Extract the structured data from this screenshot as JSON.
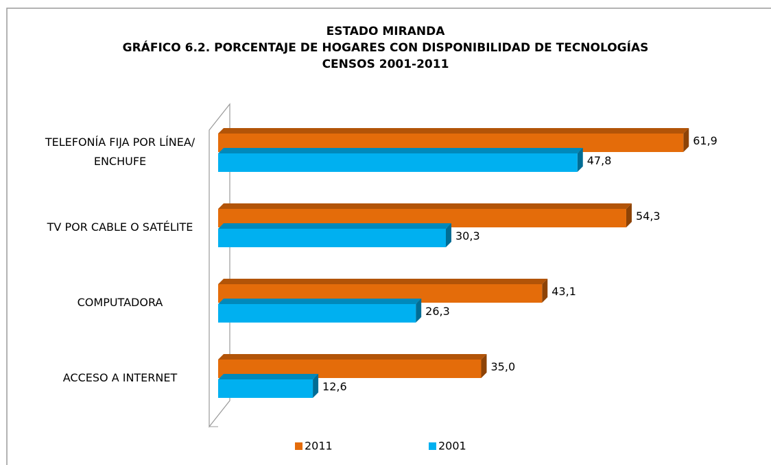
{
  "chart_data": {
    "type": "bar3d_horizontal",
    "title": [
      "ESTADO MIRANDA",
      "GRÁFICO 6.2. PORCENTAJE  DE HOGARES CON DISPONIBILIDAD  DE TECNOLOGÍAS",
      "CENSOS 2001-2011"
    ],
    "categories": [
      "TELEFONÍA FIJA POR LÍNEA/ ENCHUFE",
      "TV POR CABLE O SATÉLITE",
      "COMPUTADORA",
      "ACCESO A INTERNET"
    ],
    "series": [
      {
        "name": "2011",
        "color": "#E46C0A",
        "values": [
          61.9,
          54.3,
          43.1,
          35.0
        ],
        "value_labels": [
          "61,9",
          "54,3",
          "43,1",
          "35,0"
        ]
      },
      {
        "name": "2001",
        "color": "#00B0F0",
        "values": [
          47.8,
          30.3,
          26.3,
          12.6
        ],
        "value_labels": [
          "47,8",
          "30,3",
          "26,3",
          "12,6"
        ]
      }
    ],
    "xlim": [
      0,
      70
    ]
  }
}
